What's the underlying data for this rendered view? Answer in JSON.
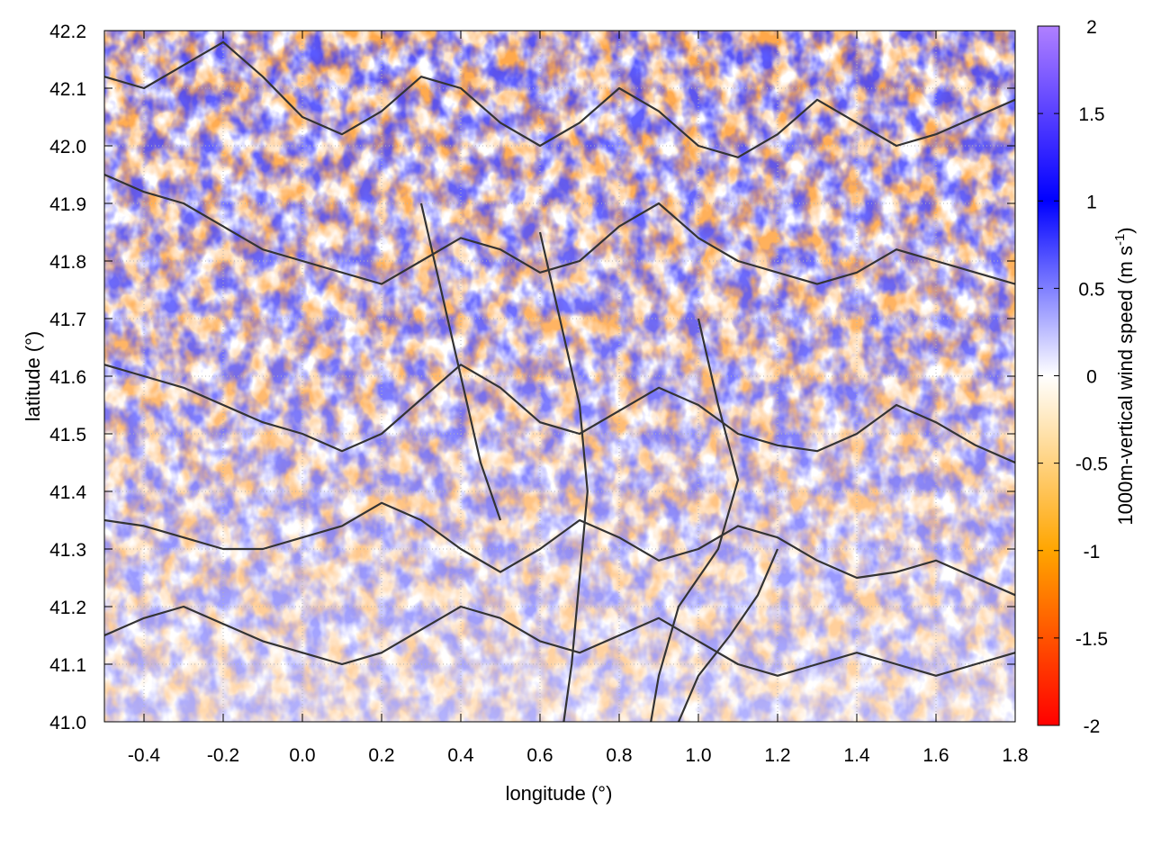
{
  "chart_data": {
    "type": "heatmap",
    "title": "",
    "xlabel": "longitude (°)",
    "ylabel": "latitude (°)",
    "xlim": [
      -0.5,
      1.8
    ],
    "ylim": [
      41.0,
      42.2
    ],
    "xticks": [
      "-0.4",
      "-0.2",
      "0.0",
      "0.2",
      "0.4",
      "0.6",
      "0.8",
      "1.0",
      "1.2",
      "1.4",
      "1.6",
      "1.8"
    ],
    "xtick_values": [
      -0.4,
      -0.2,
      0.0,
      0.2,
      0.4,
      0.6,
      0.8,
      1.0,
      1.2,
      1.4,
      1.6,
      1.8
    ],
    "yticks": [
      "41.0",
      "41.1",
      "41.2",
      "41.3",
      "41.4",
      "41.5",
      "41.6",
      "41.7",
      "41.8",
      "41.9",
      "42.0",
      "42.1",
      "42.2"
    ],
    "ytick_values": [
      41.0,
      41.1,
      41.2,
      41.3,
      41.4,
      41.5,
      41.6,
      41.7,
      41.8,
      41.9,
      42.0,
      42.1,
      42.2
    ],
    "colorbar": {
      "label_main": "1000m-vertical wind speed (m s",
      "label_sup": "-1",
      "label_end": ")",
      "range": [
        -2,
        2
      ],
      "ticks": [
        "2",
        "1.5",
        "1",
        "0.5",
        "0",
        "-0.5",
        "-1",
        "-1.5",
        "-2"
      ],
      "tick_values": [
        2,
        1.5,
        1,
        0.5,
        0,
        -0.5,
        -1,
        -1.5,
        -2
      ],
      "stops": [
        {
          "value": -2,
          "color": "#ff0000"
        },
        {
          "value": -1,
          "color": "#ffa500"
        },
        {
          "value": 0,
          "color": "#ffffff"
        },
        {
          "value": 1,
          "color": "#0000ff"
        },
        {
          "value": 2,
          "color": "#b080ff"
        }
      ]
    },
    "grid": true,
    "contour_color": "#333333",
    "contours": [
      [
        [
          -0.5,
          41.95
        ],
        [
          -0.4,
          41.92
        ],
        [
          -0.3,
          41.9
        ],
        [
          -0.2,
          41.86
        ],
        [
          -0.1,
          41.82
        ],
        [
          0.0,
          41.8
        ],
        [
          0.1,
          41.78
        ],
        [
          0.2,
          41.76
        ],
        [
          0.3,
          41.8
        ],
        [
          0.4,
          41.84
        ],
        [
          0.5,
          41.82
        ],
        [
          0.6,
          41.78
        ],
        [
          0.7,
          41.8
        ],
        [
          0.8,
          41.86
        ],
        [
          0.9,
          41.9
        ],
        [
          1.0,
          41.84
        ],
        [
          1.1,
          41.8
        ],
        [
          1.2,
          41.78
        ],
        [
          1.3,
          41.76
        ],
        [
          1.4,
          41.78
        ],
        [
          1.5,
          41.82
        ],
        [
          1.6,
          41.8
        ],
        [
          1.7,
          41.78
        ],
        [
          1.8,
          41.76
        ]
      ],
      [
        [
          -0.5,
          41.62
        ],
        [
          -0.4,
          41.6
        ],
        [
          -0.3,
          41.58
        ],
        [
          -0.2,
          41.55
        ],
        [
          -0.1,
          41.52
        ],
        [
          0.0,
          41.5
        ],
        [
          0.1,
          41.47
        ],
        [
          0.2,
          41.5
        ],
        [
          0.3,
          41.56
        ],
        [
          0.4,
          41.62
        ],
        [
          0.5,
          41.58
        ],
        [
          0.6,
          41.52
        ],
        [
          0.7,
          41.5
        ],
        [
          0.8,
          41.54
        ],
        [
          0.9,
          41.58
        ],
        [
          1.0,
          41.55
        ],
        [
          1.1,
          41.5
        ],
        [
          1.2,
          41.48
        ],
        [
          1.3,
          41.47
        ],
        [
          1.4,
          41.5
        ],
        [
          1.5,
          41.55
        ],
        [
          1.6,
          41.52
        ],
        [
          1.7,
          41.48
        ],
        [
          1.8,
          41.45
        ]
      ],
      [
        [
          -0.5,
          41.35
        ],
        [
          -0.4,
          41.34
        ],
        [
          -0.3,
          41.32
        ],
        [
          -0.2,
          41.3
        ],
        [
          -0.1,
          41.3
        ],
        [
          0.0,
          41.32
        ],
        [
          0.1,
          41.34
        ],
        [
          0.2,
          41.38
        ],
        [
          0.3,
          41.35
        ],
        [
          0.4,
          41.3
        ],
        [
          0.5,
          41.26
        ],
        [
          0.6,
          41.3
        ],
        [
          0.7,
          41.35
        ],
        [
          0.8,
          41.32
        ],
        [
          0.9,
          41.28
        ],
        [
          1.0,
          41.3
        ],
        [
          1.1,
          41.34
        ],
        [
          1.2,
          41.32
        ],
        [
          1.3,
          41.28
        ],
        [
          1.4,
          41.25
        ],
        [
          1.5,
          41.26
        ],
        [
          1.6,
          41.28
        ],
        [
          1.7,
          41.25
        ],
        [
          1.8,
          41.22
        ]
      ],
      [
        [
          -0.5,
          41.15
        ],
        [
          -0.4,
          41.18
        ],
        [
          -0.3,
          41.2
        ],
        [
          -0.2,
          41.17
        ],
        [
          -0.1,
          41.14
        ],
        [
          0.0,
          41.12
        ],
        [
          0.1,
          41.1
        ],
        [
          0.2,
          41.12
        ],
        [
          0.3,
          41.16
        ],
        [
          0.4,
          41.2
        ],
        [
          0.5,
          41.18
        ],
        [
          0.6,
          41.14
        ],
        [
          0.7,
          41.12
        ],
        [
          0.8,
          41.15
        ],
        [
          0.9,
          41.18
        ],
        [
          1.0,
          41.14
        ],
        [
          1.1,
          41.1
        ],
        [
          1.2,
          41.08
        ],
        [
          1.3,
          41.1
        ],
        [
          1.4,
          41.12
        ],
        [
          1.5,
          41.1
        ],
        [
          1.6,
          41.08
        ],
        [
          1.7,
          41.1
        ],
        [
          1.8,
          41.12
        ]
      ],
      [
        [
          -0.5,
          42.12
        ],
        [
          -0.4,
          42.1
        ],
        [
          -0.3,
          42.14
        ],
        [
          -0.2,
          42.18
        ],
        [
          -0.1,
          42.12
        ],
        [
          0.0,
          42.05
        ],
        [
          0.1,
          42.02
        ],
        [
          0.2,
          42.06
        ],
        [
          0.3,
          42.12
        ],
        [
          0.4,
          42.1
        ],
        [
          0.5,
          42.04
        ],
        [
          0.6,
          42.0
        ],
        [
          0.7,
          42.04
        ],
        [
          0.8,
          42.1
        ],
        [
          0.9,
          42.06
        ],
        [
          1.0,
          42.0
        ],
        [
          1.1,
          41.98
        ],
        [
          1.2,
          42.02
        ],
        [
          1.3,
          42.08
        ],
        [
          1.4,
          42.04
        ],
        [
          1.5,
          42.0
        ],
        [
          1.6,
          42.02
        ],
        [
          1.7,
          42.05
        ],
        [
          1.8,
          42.08
        ]
      ],
      [
        [
          0.3,
          41.9
        ],
        [
          0.35,
          41.75
        ],
        [
          0.4,
          41.6
        ],
        [
          0.45,
          41.45
        ],
        [
          0.5,
          41.35
        ]
      ],
      [
        [
          0.6,
          41.85
        ],
        [
          0.65,
          41.7
        ],
        [
          0.7,
          41.55
        ],
        [
          0.72,
          41.4
        ],
        [
          0.7,
          41.25
        ],
        [
          0.68,
          41.1
        ],
        [
          0.66,
          41.0
        ]
      ],
      [
        [
          1.0,
          41.7
        ],
        [
          1.05,
          41.55
        ],
        [
          1.1,
          41.42
        ],
        [
          1.05,
          41.3
        ],
        [
          0.95,
          41.2
        ],
        [
          0.9,
          41.08
        ],
        [
          0.88,
          41.0
        ]
      ],
      [
        [
          1.2,
          41.3
        ],
        [
          1.15,
          41.22
        ],
        [
          1.08,
          41.15
        ],
        [
          1.0,
          41.08
        ],
        [
          0.95,
          41.0
        ]
      ]
    ]
  }
}
